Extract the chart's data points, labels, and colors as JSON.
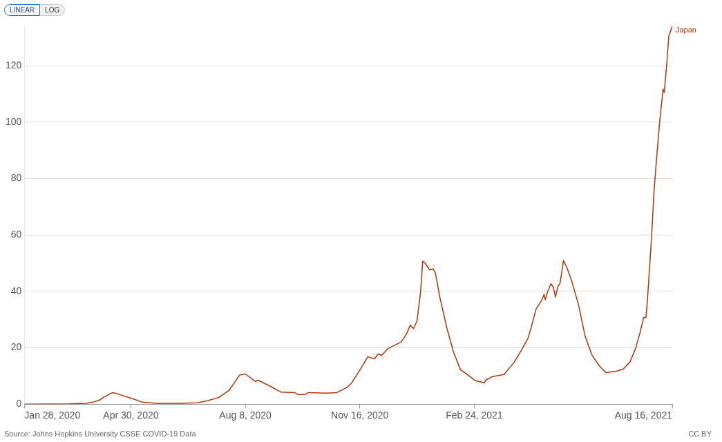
{
  "chart_data": {
    "type": "line",
    "annotations": [
      "LINEAR",
      "LOG",
      "Source: Johns Hopkins University CSSE COVID-19 Data",
      "CC BY"
    ],
    "xlim": [
      "2020-01-28",
      "2021-08-16"
    ],
    "xticks": [
      {
        "value": "2020-01-28",
        "label": "Jan 28, 2020"
      },
      {
        "value": "2020-04-30",
        "label": "Apr 30, 2020"
      },
      {
        "value": "2020-08-08",
        "label": "Aug 8, 2020"
      },
      {
        "value": "2020-11-16",
        "label": "Nov 16, 2020"
      },
      {
        "value": "2021-02-24",
        "label": "Feb 24, 2021"
      },
      {
        "value": "2021-08-16",
        "label": "Aug 16, 2021"
      }
    ],
    "ylim": [
      0,
      134
    ],
    "yticks": [
      0,
      20,
      40,
      60,
      80,
      100,
      120
    ],
    "grid": "y",
    "legend": false,
    "marker": "none",
    "line_style": "solid",
    "series": [
      {
        "name": "Japan",
        "color": "#b13507",
        "x": [
          "2020-01-28",
          "2020-03-07",
          "2020-03-22",
          "2020-03-28",
          "2020-04-03",
          "2020-04-06",
          "2020-04-14",
          "2020-04-18",
          "2020-05-01",
          "2020-05-10",
          "2020-05-22",
          "2020-06-12",
          "2020-06-27",
          "2020-07-06",
          "2020-07-16",
          "2020-07-25",
          "2020-08-03",
          "2020-08-08",
          "2020-08-17",
          "2020-08-19",
          "2020-08-30",
          "2020-09-08",
          "2020-09-20",
          "2020-09-23",
          "2020-09-29",
          "2020-10-02",
          "2020-10-18",
          "2020-10-27",
          "2020-11-05",
          "2020-11-09",
          "2020-11-16",
          "2020-11-23",
          "2020-11-29",
          "2020-12-02",
          "2020-12-05",
          "2020-12-11",
          "2020-12-17",
          "2020-12-22",
          "2020-12-27",
          "2020-12-30",
          "2021-01-02",
          "2021-01-05",
          "2021-01-08",
          "2021-01-10",
          "2021-01-12",
          "2021-01-16",
          "2021-01-19",
          "2021-01-21",
          "2021-01-25",
          "2021-01-31",
          "2021-02-06",
          "2021-02-12",
          "2021-02-18",
          "2021-02-25",
          "2021-03-05",
          "2021-03-06",
          "2021-03-12",
          "2021-03-22",
          "2021-03-31",
          "2021-04-06",
          "2021-04-12",
          "2021-04-15",
          "2021-04-19",
          "2021-04-24",
          "2021-04-26",
          "2021-04-27",
          "2021-04-29",
          "2021-05-02",
          "2021-05-04",
          "2021-05-06",
          "2021-05-08",
          "2021-05-10",
          "2021-05-13",
          "2021-05-16",
          "2021-05-20",
          "2021-05-26",
          "2021-06-01",
          "2021-06-07",
          "2021-06-13",
          "2021-06-19",
          "2021-06-28",
          "2021-07-04",
          "2021-07-10",
          "2021-07-15",
          "2021-07-19",
          "2021-07-22",
          "2021-07-24",
          "2021-07-25",
          "2021-07-26",
          "2021-07-29",
          "2021-07-31",
          "2021-08-02",
          "2021-08-05",
          "2021-08-08",
          "2021-08-09",
          "2021-08-11",
          "2021-08-13",
          "2021-08-16"
        ],
        "values": [
          0,
          0.1,
          0.3,
          0.7,
          1.5,
          2.4,
          4.1,
          3.7,
          2,
          0.7,
          0.3,
          0.3,
          0.5,
          1.2,
          2.4,
          5,
          10.3,
          10.7,
          8,
          8.5,
          6.3,
          4.3,
          4.1,
          3.4,
          3.4,
          4.1,
          3.9,
          4.1,
          6,
          7.6,
          12,
          16.8,
          16.1,
          17.8,
          17.3,
          19.8,
          21,
          22,
          25,
          28,
          26.8,
          29.5,
          39.3,
          50.7,
          50,
          47.6,
          48,
          46.6,
          37.8,
          27.1,
          18.3,
          12.2,
          10.5,
          8.3,
          7.6,
          8.5,
          9.8,
          10.5,
          14.9,
          19,
          23.4,
          27.6,
          33.7,
          36.8,
          39,
          37,
          39.8,
          42.7,
          41.5,
          38,
          41.7,
          42.9,
          51,
          48.3,
          43.9,
          35.4,
          23.9,
          17.3,
          13.7,
          11.2,
          11.7,
          12.4,
          14.9,
          19.8,
          25.6,
          30.7,
          30.7,
          35.4,
          41,
          59.8,
          75.1,
          85.6,
          100.2,
          111.7,
          110.5,
          119.8,
          130.5,
          134
        ]
      }
    ]
  }
}
